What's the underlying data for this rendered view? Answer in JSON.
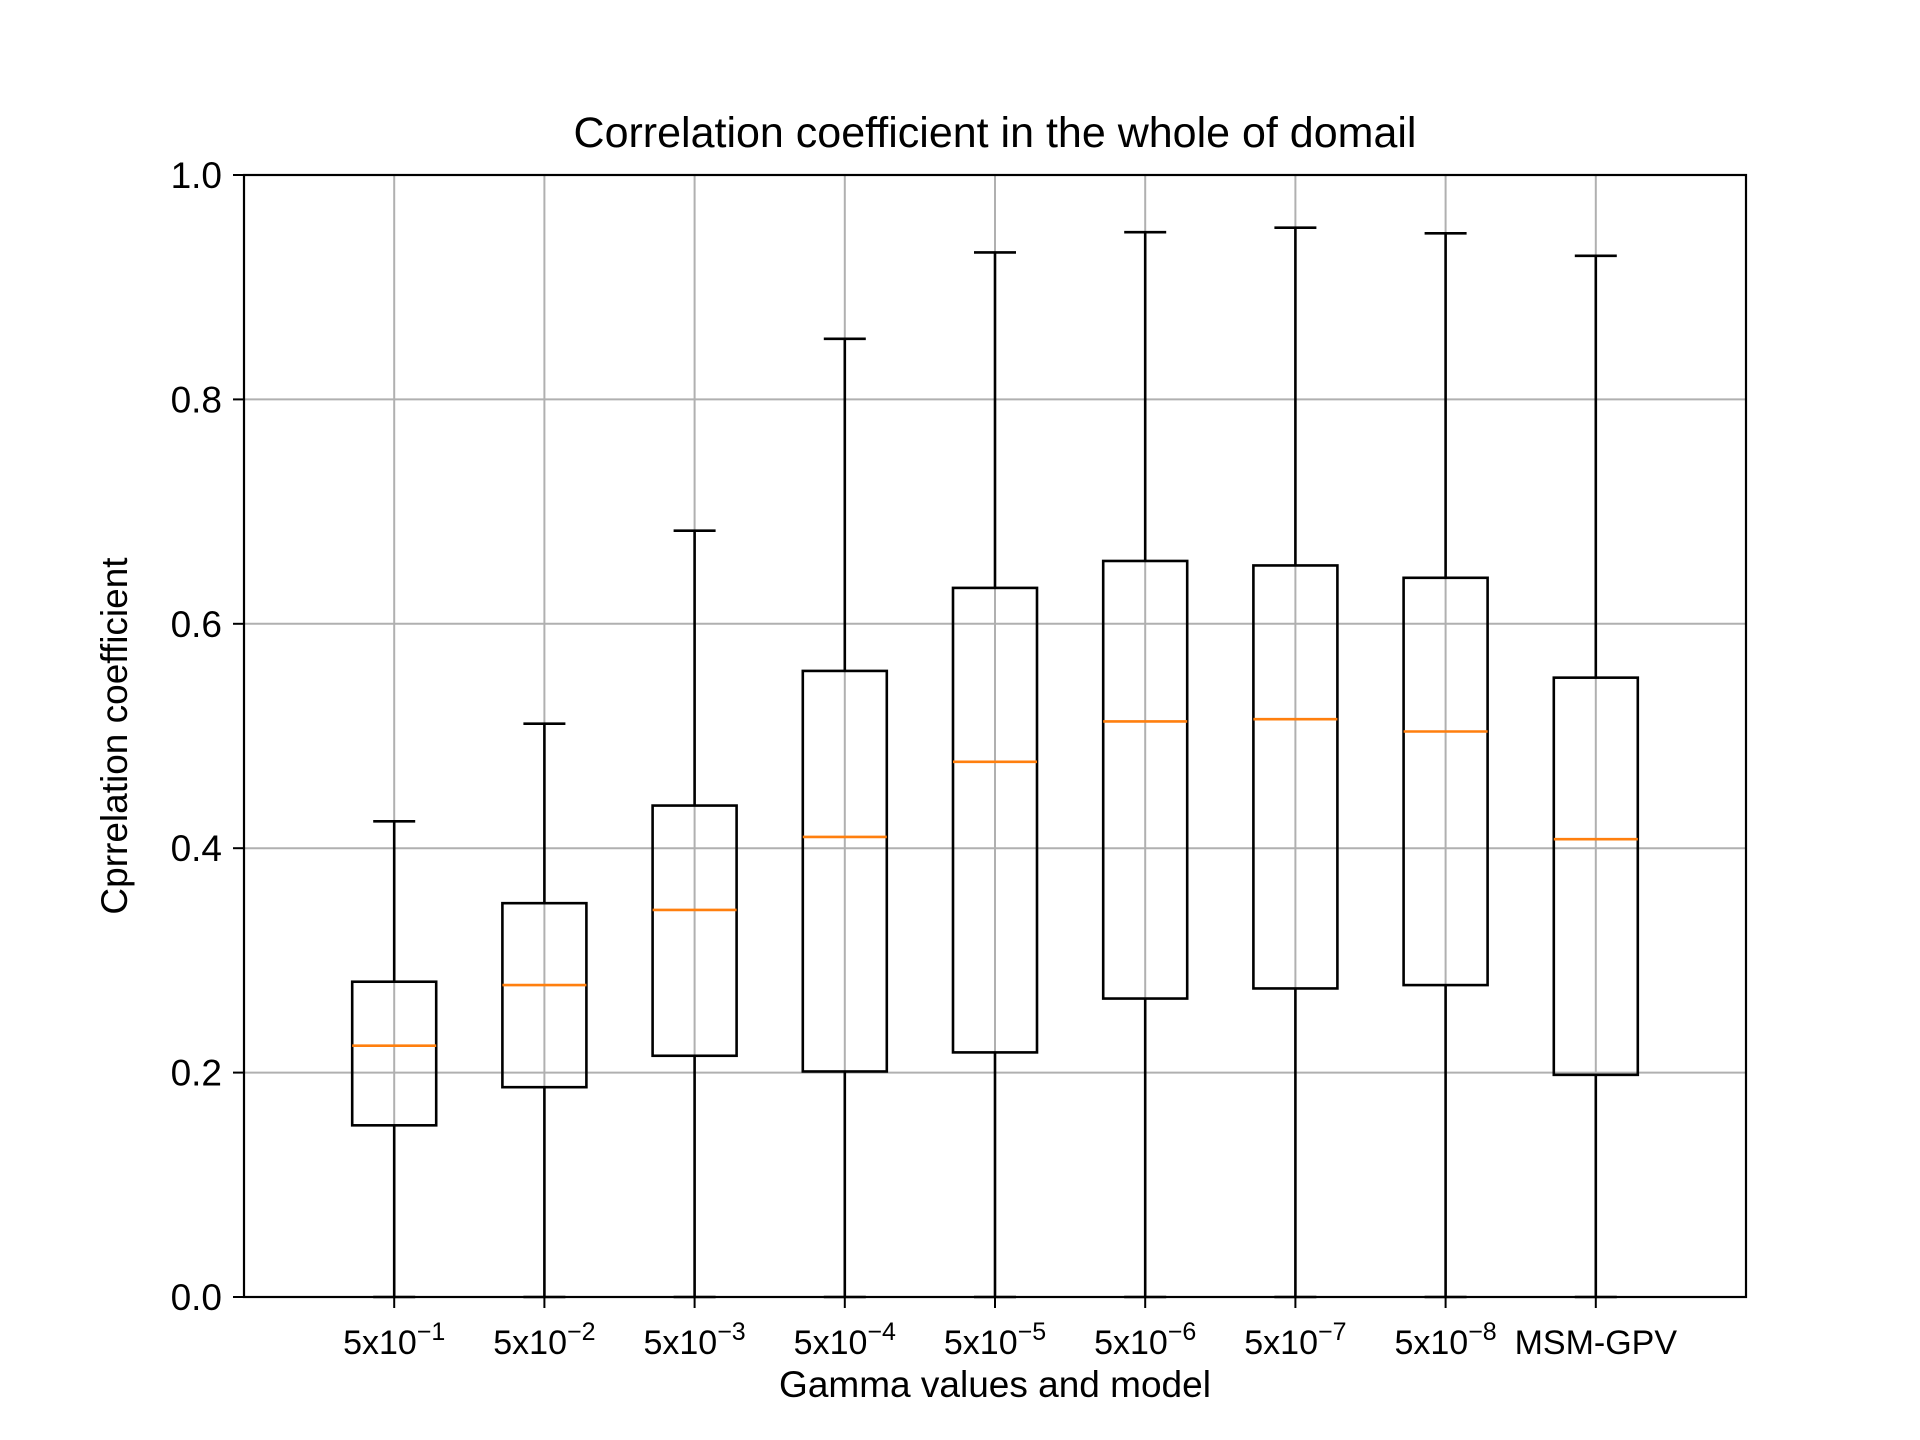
{
  "chart_data": {
    "type": "boxplot",
    "title": "Correlation coefficient in the whole of domail",
    "xlabel": "Gamma values and model",
    "ylabel": "Cprrelation coefficient",
    "ylim": [
      0,
      1.0
    ],
    "yticks": [
      "0.0",
      "0.2",
      "0.4",
      "0.6",
      "0.8",
      "1.0"
    ],
    "grid": true,
    "categories": [
      {
        "base": "5x10",
        "exp": "−1"
      },
      {
        "base": "5x10",
        "exp": "−2"
      },
      {
        "base": "5x10",
        "exp": "−3"
      },
      {
        "base": "5x10",
        "exp": "−4"
      },
      {
        "base": "5x10",
        "exp": "−5"
      },
      {
        "base": "5x10",
        "exp": "−6"
      },
      {
        "base": "5x10",
        "exp": "−7"
      },
      {
        "base": "5x10",
        "exp": "−8"
      },
      {
        "base": "MSM-GPV",
        "exp": ""
      }
    ],
    "boxes": [
      {
        "whislo": 0.0,
        "q1": 0.153,
        "med": 0.224,
        "q3": 0.281,
        "whishi": 0.424
      },
      {
        "whislo": 0.0,
        "q1": 0.187,
        "med": 0.278,
        "q3": 0.351,
        "whishi": 0.511
      },
      {
        "whislo": 0.0,
        "q1": 0.215,
        "med": 0.345,
        "q3": 0.438,
        "whishi": 0.683
      },
      {
        "whislo": 0.0,
        "q1": 0.201,
        "med": 0.41,
        "q3": 0.558,
        "whishi": 0.854
      },
      {
        "whislo": 0.0,
        "q1": 0.218,
        "med": 0.477,
        "q3": 0.632,
        "whishi": 0.931
      },
      {
        "whislo": 0.0,
        "q1": 0.266,
        "med": 0.513,
        "q3": 0.656,
        "whishi": 0.949
      },
      {
        "whislo": 0.0,
        "q1": 0.275,
        "med": 0.515,
        "q3": 0.652,
        "whishi": 0.953
      },
      {
        "whislo": 0.0,
        "q1": 0.278,
        "med": 0.504,
        "q3": 0.641,
        "whishi": 0.948
      },
      {
        "whislo": 0.0,
        "q1": 0.198,
        "med": 0.408,
        "q3": 0.552,
        "whishi": 0.928
      }
    ],
    "colors": {
      "box": "#000000",
      "median": "#ff7f0e",
      "grid": "#b0b0b0"
    }
  }
}
